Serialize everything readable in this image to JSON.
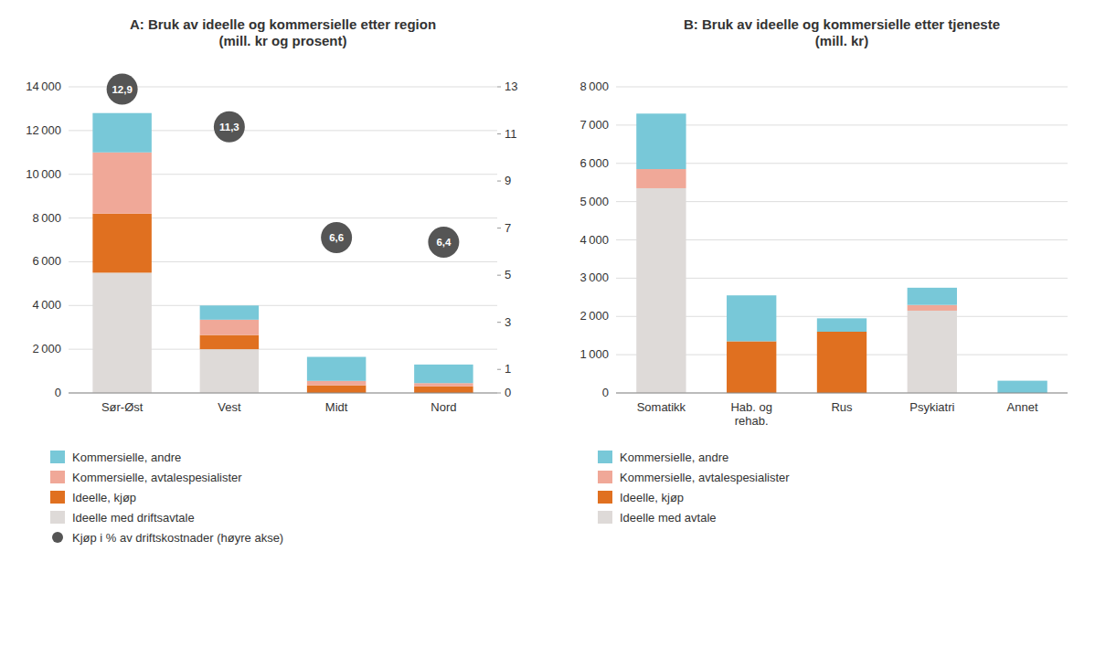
{
  "chart_data": [
    {
      "type": "bar",
      "stacked": true,
      "title": "A: Bruk av ideelle og kommersielle etter region\n(mill. kr og prosent)",
      "categories": [
        "Sør-Øst",
        "Vest",
        "Midt",
        "Nord"
      ],
      "series": [
        {
          "name": "Ideelle med driftsavtale",
          "color": "#dedad8",
          "values": [
            5500,
            2000,
            0,
            0
          ]
        },
        {
          "name": "Ideelle, kjøp",
          "color": "#e07020",
          "values": [
            2700,
            650,
            350,
            300
          ]
        },
        {
          "name": "Kommersielle, avtalespesialister",
          "color": "#f0a898",
          "values": [
            2800,
            700,
            200,
            150
          ]
        },
        {
          "name": "Kommersielle, andre",
          "color": "#78c8d8",
          "values": [
            1800,
            650,
            1100,
            850
          ]
        },
        {
          "name": "Kjøp i % av driftskostnader (høyre akse)",
          "type": "scatter",
          "axis": "y2",
          "marker": "circle",
          "data_labels": true,
          "color": "#555555",
          "values": [
            12.9,
            11.3,
            6.6,
            6.4
          ],
          "value_labels": [
            "12,9",
            "11,3",
            "6,6",
            "6,4"
          ]
        }
      ],
      "ylim": [
        0,
        14000
      ],
      "yticks": [
        0,
        {
          "value": 2000,
          "label": "2 000"
        },
        {
          "value": 4000,
          "label": "4 000"
        },
        {
          "value": 6000,
          "label": "6 000"
        },
        {
          "value": 8000,
          "label": "8 000"
        },
        {
          "value": 10000,
          "label": "10 000"
        },
        {
          "value": 12000,
          "label": "12 000"
        },
        {
          "value": 14000,
          "label": "14 000"
        }
      ],
      "y2lim": [
        0,
        13
      ],
      "y2ticks": [
        0,
        1,
        3,
        5,
        7,
        9,
        11,
        13
      ],
      "grid": true,
      "legend": "bottom"
    },
    {
      "type": "bar",
      "stacked": true,
      "title": "B: Bruk av ideelle og kommersielle etter tjeneste\n(mill. kr)",
      "categories": [
        "Somatikk",
        "Hab. og\nrehab.",
        "Rus",
        "Psykiatri",
        "Annet"
      ],
      "series": [
        {
          "name": "Ideelle med avtale",
          "color": "#dedad8",
          "values": [
            5350,
            0,
            0,
            2150,
            0
          ]
        },
        {
          "name": "Ideelle, kjøp",
          "color": "#e07020",
          "values": [
            0,
            1350,
            1600,
            0,
            0
          ]
        },
        {
          "name": "Kommersielle, avtalespesialister",
          "color": "#f0a898",
          "values": [
            500,
            0,
            0,
            150,
            0
          ]
        },
        {
          "name": "Kommersielle, andre",
          "color": "#78c8d8",
          "values": [
            1450,
            1200,
            350,
            450,
            320
          ]
        }
      ],
      "ylim": [
        0,
        8000
      ],
      "yticks": [
        0,
        {
          "value": 1000,
          "label": "1 000"
        },
        {
          "value": 2000,
          "label": "2 000"
        },
        {
          "value": 3000,
          "label": "3 000"
        },
        {
          "value": 4000,
          "label": "4 000"
        },
        {
          "value": 5000,
          "label": "5 000"
        },
        {
          "value": 6000,
          "label": "6 000"
        },
        {
          "value": 7000,
          "label": "7 000"
        },
        {
          "value": 8000,
          "label": "8 000"
        }
      ],
      "grid": true,
      "legend": "bottom"
    }
  ]
}
